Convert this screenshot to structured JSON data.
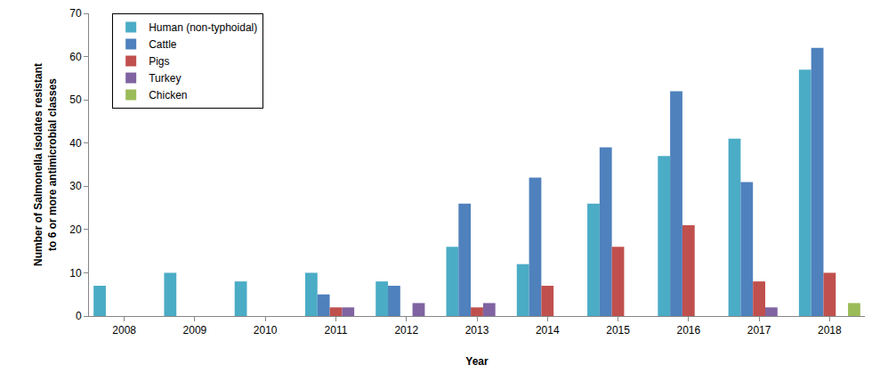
{
  "chart_data": {
    "type": "bar",
    "x_label": "Year",
    "y_label": "Number of Salmonella isolates resistant to 6 or more antimicrobial classes",
    "categories": [
      "2008",
      "2009",
      "2010",
      "2011",
      "2012",
      "2013",
      "2014",
      "2015",
      "2016",
      "2017",
      "2018"
    ],
    "series": [
      {
        "name": "Human (non-typhoidal)",
        "color": "#4bacc6",
        "values": [
          7,
          10,
          8,
          10,
          8,
          16,
          12,
          26,
          37,
          41,
          57
        ]
      },
      {
        "name": "Cattle",
        "color": "#4f81bd",
        "values": [
          null,
          null,
          null,
          5,
          7,
          26,
          32,
          39,
          52,
          31,
          62
        ]
      },
      {
        "name": "Pigs",
        "color": "#c0504d",
        "values": [
          null,
          null,
          null,
          2,
          null,
          2,
          7,
          16,
          21,
          8,
          10
        ]
      },
      {
        "name": "Turkey",
        "color": "#8064a2",
        "values": [
          null,
          null,
          null,
          2,
          3,
          3,
          null,
          null,
          null,
          2,
          null
        ]
      },
      {
        "name": "Chicken",
        "color": "#9bbb59",
        "values": [
          null,
          null,
          null,
          null,
          null,
          null,
          null,
          null,
          null,
          null,
          3
        ]
      }
    ],
    "ylim": [
      0,
      70
    ],
    "yticks": [
      0,
      10,
      20,
      30,
      40,
      50,
      60,
      70
    ],
    "grid": false,
    "legend": "upper left"
  }
}
